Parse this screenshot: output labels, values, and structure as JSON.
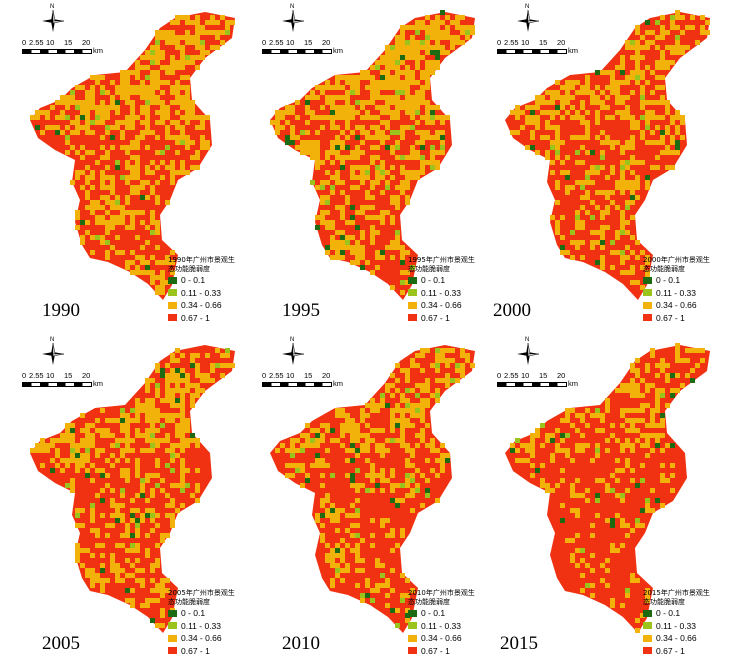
{
  "compass_label": "N",
  "scalebar": {
    "ticks": [
      "0",
      "2.55",
      "10",
      "15",
      "20"
    ],
    "unit": "km"
  },
  "legend": {
    "classes": [
      {
        "label": "0 - 0.1",
        "color": "#1e6a12"
      },
      {
        "label": "0.11 - 0.33",
        "color": "#9ac41c"
      },
      {
        "label": "0.34 - 0.66",
        "color": "#f2b20a"
      },
      {
        "label": "0.67 - 1",
        "color": "#f03212"
      }
    ]
  },
  "panels": [
    {
      "year": "1990",
      "legend_title": "1990年广州市景观生态功能脆弱度",
      "orange_share": 0.36,
      "green_share": 0.04
    },
    {
      "year": "1995",
      "legend_title": "1995年广州市景观生态功能脆弱度",
      "orange_share": 0.4,
      "green_share": 0.05
    },
    {
      "year": "2000",
      "legend_title": "2000年广州市景观生态功能脆弱度",
      "orange_share": 0.3,
      "green_share": 0.03
    },
    {
      "year": "2005",
      "legend_title": "2005年广州市景观生态功能脆弱度",
      "orange_share": 0.3,
      "green_share": 0.03
    },
    {
      "year": "2010",
      "legend_title": "2010年广州市景观生态功能脆弱度",
      "orange_share": 0.24,
      "green_share": 0.04
    },
    {
      "year": "2015",
      "legend_title": "2015年广州市景观生态功能脆弱度",
      "orange_share": 0.16,
      "green_share": 0.02
    }
  ]
}
